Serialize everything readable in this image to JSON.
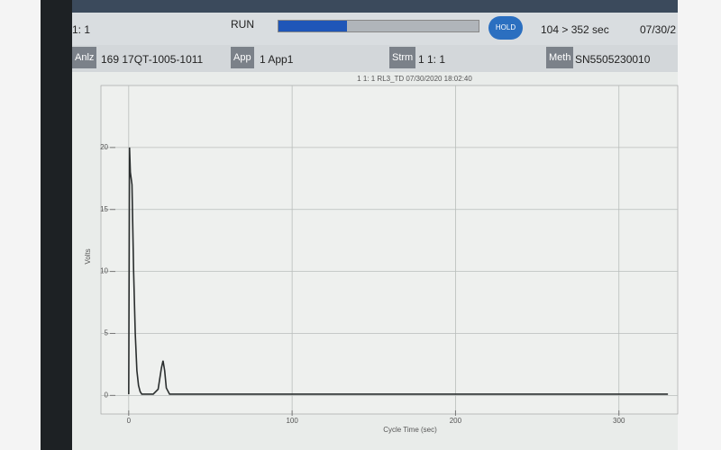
{
  "header": {
    "position": "1: 1",
    "status": "RUN",
    "hold_button": "HOLD",
    "time": "104 > 352 sec",
    "date": "07/30/2"
  },
  "info": [
    {
      "label": "Anlz",
      "value": "169 17QT-1005-1011"
    },
    {
      "label": "App",
      "value": "1 App1"
    },
    {
      "label": "Strm",
      "value": "1 1: 1"
    },
    {
      "label": "Meth",
      "value": "SN5505230010"
    }
  ],
  "chart_data": {
    "type": "line",
    "title": "1 1: 1   RL3_TD   07/30/2020 18:02:40",
    "x_label": "Cycle Time (sec)",
    "y_label": "Volts",
    "x": [
      0,
      0.5,
      1,
      2,
      3,
      4,
      5,
      6,
      7,
      8,
      10,
      15,
      18,
      20,
      21,
      22,
      23,
      25,
      30,
      100,
      200,
      330
    ],
    "series": [
      {
        "name": "RL3_TD",
        "color": "#2a2e2e",
        "values": [
          0.1,
          20,
          18,
          17,
          10,
          5,
          2,
          0.8,
          0.3,
          0.1,
          0.1,
          0.1,
          0.5,
          2.2,
          2.8,
          2,
          0.6,
          0.1,
          0.1,
          0.1,
          0.1,
          0.1
        ]
      }
    ],
    "xlim": [
      -17,
      336
    ],
    "ylim": [
      -1.5,
      25
    ],
    "xticks": [
      0,
      100,
      200,
      300
    ],
    "yticks": [
      0,
      5,
      10,
      15,
      20
    ],
    "grid": true
  }
}
